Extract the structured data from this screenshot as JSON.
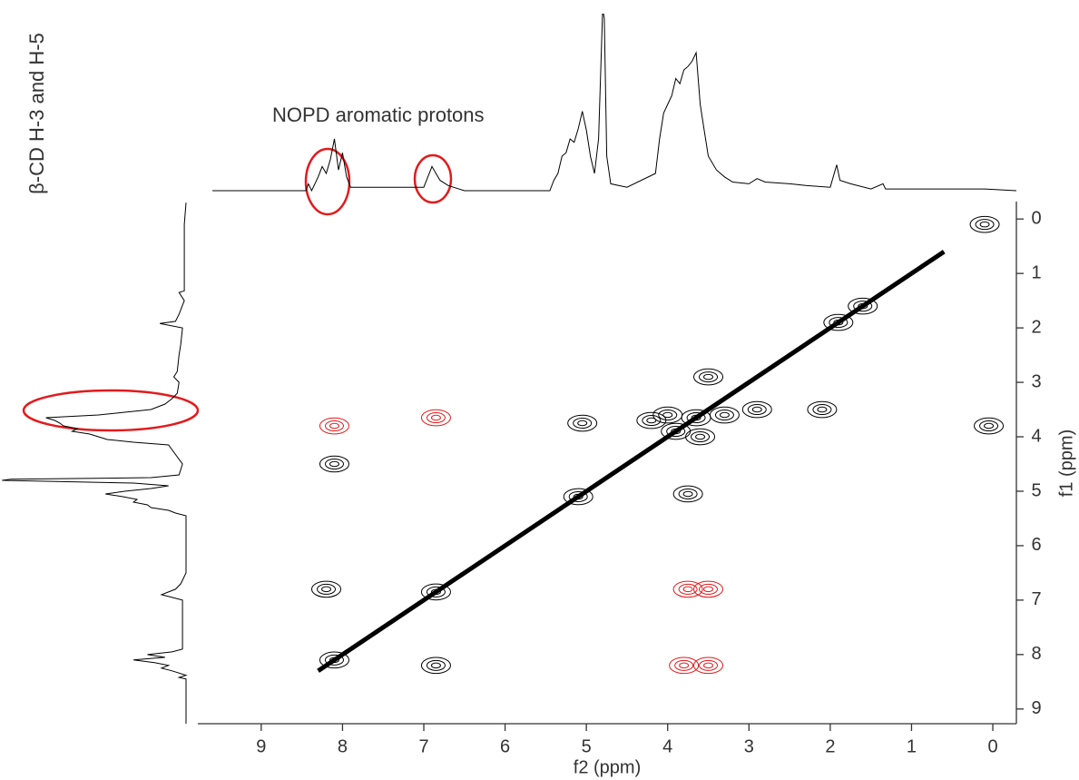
{
  "chart_data": {
    "type": "nmr2d",
    "annotations": [
      "NOPD aromatic protons",
      "β-CD H-3 and H-5"
    ],
    "xlabel": "f2 (ppm)",
    "ylabel": "f1 (ppm)",
    "xlim": [
      9.78,
      -0.29
    ],
    "ylim": [
      -0.32,
      9.27
    ],
    "xticks": [
      9,
      8,
      7,
      6,
      5,
      4,
      3,
      2,
      1,
      0
    ],
    "yticks": [
      0,
      1,
      2,
      3,
      4,
      5,
      6,
      7,
      8,
      9
    ],
    "projection": {
      "color": "#000000",
      "ylim": [
        0,
        100
      ],
      "x": [
        9.6,
        8.45,
        8.42,
        8.38,
        8.3,
        8.25,
        8.2,
        8.15,
        8.1,
        8.05,
        8.0,
        7.95,
        7.9,
        7.0,
        6.95,
        6.9,
        6.85,
        6.8,
        6.7,
        6.5,
        5.45,
        5.4,
        5.35,
        5.3,
        5.25,
        5.2,
        5.15,
        5.1,
        5.05,
        5.0,
        4.95,
        4.9,
        4.85,
        4.8,
        4.78,
        4.75,
        4.7,
        4.5,
        4.15,
        4.1,
        4.05,
        4.0,
        3.95,
        3.9,
        3.85,
        3.8,
        3.75,
        3.7,
        3.65,
        3.6,
        3.55,
        3.5,
        3.4,
        3.3,
        3.2,
        3.0,
        2.9,
        2.8,
        2.5,
        2.3,
        2.0,
        1.92,
        1.88,
        1.75,
        1.5,
        1.35,
        1.32,
        0.1,
        -0.3
      ],
      "values": [
        0,
        0,
        4,
        0,
        8,
        14,
        10,
        18,
        30,
        12,
        22,
        8,
        2,
        2,
        8,
        14,
        10,
        6,
        3,
        0,
        0,
        6,
        10,
        20,
        22,
        30,
        28,
        36,
        46,
        35,
        20,
        10,
        30,
        105,
        100,
        20,
        4,
        2,
        10,
        30,
        45,
        50,
        55,
        65,
        62,
        70,
        72,
        75,
        80,
        50,
        35,
        20,
        12,
        8,
        5,
        4,
        7,
        5,
        4,
        3,
        2,
        15,
        6,
        4,
        1,
        4,
        1,
        1,
        0
      ]
    },
    "diagonal": {
      "color": "#000000",
      "x": [
        8.3,
        0.6
      ],
      "y": [
        8.3,
        0.6
      ]
    },
    "series": [
      {
        "color": "#000000",
        "x": [
          8.1,
          6.85,
          5.1,
          3.9,
          3.65,
          1.9,
          1.6,
          5.05,
          3.75,
          4.0,
          3.6,
          3.5,
          2.9,
          6.85,
          8.2,
          8.1,
          2.1,
          0.1,
          0.05,
          4.2,
          3.3
        ],
        "y": [
          8.1,
          6.85,
          5.1,
          3.9,
          3.65,
          1.9,
          1.6,
          3.75,
          5.05,
          3.6,
          4.0,
          2.9,
          3.5,
          8.2,
          6.8,
          4.5,
          3.5,
          0.1,
          3.8,
          3.7,
          3.6
        ]
      },
      {
        "color": "#e31a1c",
        "x": [
          8.1,
          6.85,
          3.75,
          3.5,
          3.8,
          3.5
        ],
        "y": [
          3.8,
          3.65,
          6.8,
          6.8,
          8.2,
          8.2
        ]
      }
    ]
  }
}
